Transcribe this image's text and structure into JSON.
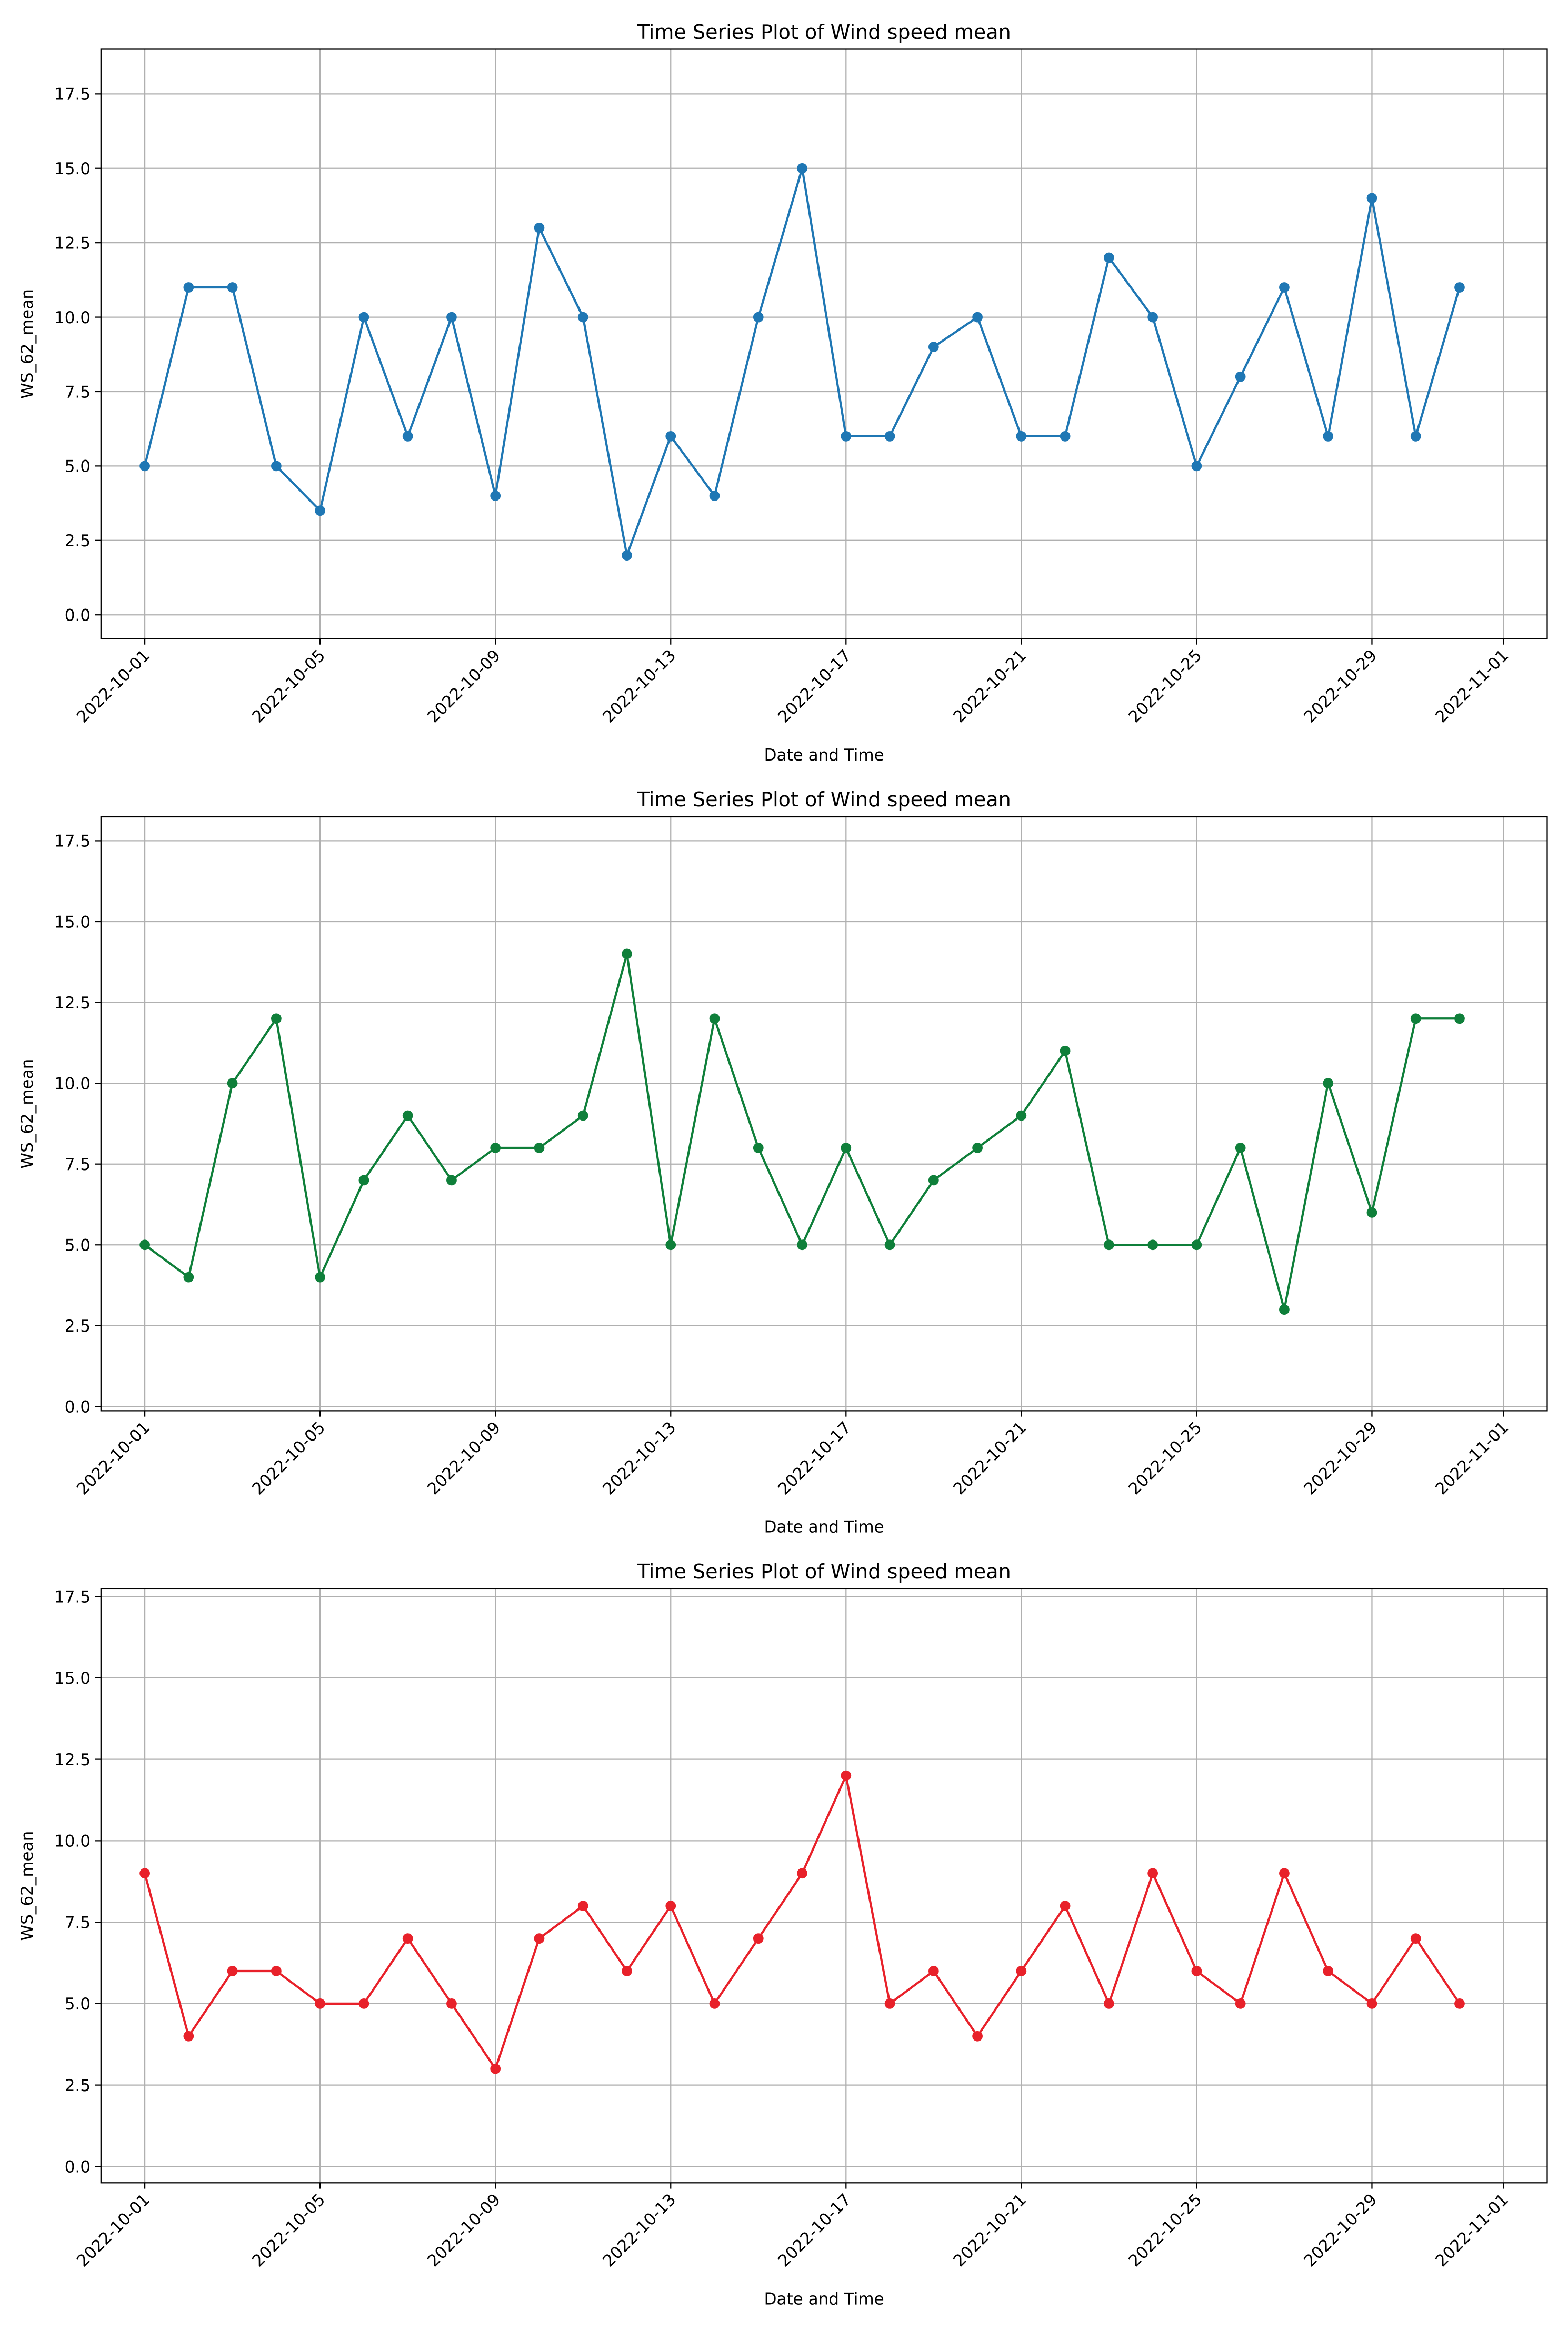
{
  "chart_data": [
    {
      "type": "line",
      "title": "Time Series Plot of Wind speed mean",
      "xlabel": "Date and Time",
      "ylabel": "WS_62_mean",
      "color": "#1f77b4",
      "grid": true,
      "x": [
        "2022-10-01",
        "2022-10-02",
        "2022-10-03",
        "2022-10-04",
        "2022-10-05",
        "2022-10-06",
        "2022-10-07",
        "2022-10-08",
        "2022-10-09",
        "2022-10-10",
        "2022-10-11",
        "2022-10-12",
        "2022-10-13",
        "2022-10-14",
        "2022-10-15",
        "2022-10-16",
        "2022-10-17",
        "2022-10-18",
        "2022-10-19",
        "2022-10-20",
        "2022-10-21",
        "2022-10-22",
        "2022-10-23",
        "2022-10-24",
        "2022-10-25",
        "2022-10-26",
        "2022-10-27",
        "2022-10-28",
        "2022-10-29",
        "2022-10-30",
        "2022-10-31"
      ],
      "values": [
        5,
        11,
        11,
        5,
        3.5,
        10,
        6,
        10,
        4,
        13,
        10,
        2,
        6,
        4,
        10,
        15,
        6,
        6,
        9,
        10,
        6,
        6,
        12,
        10,
        5,
        8,
        11,
        6,
        14,
        6,
        11
      ],
      "xlim": [
        "2022-09-30",
        "2022-11-02"
      ],
      "xticks": [
        "2022-10-01",
        "2022-10-05",
        "2022-10-09",
        "2022-10-13",
        "2022-10-17",
        "2022-10-21",
        "2022-10-25",
        "2022-10-29",
        "2022-11-01"
      ],
      "ylim": [
        -0.8,
        19.0
      ],
      "yticks": [
        {
          "value": 0,
          "label": "0.0"
        },
        2.5,
        {
          "value": 5,
          "label": "5.0"
        },
        7.5,
        {
          "value": 10,
          "label": "10.0"
        },
        12.5,
        {
          "value": 15,
          "label": "15.0"
        },
        17.5
      ]
    },
    {
      "type": "line",
      "title": "Time Series Plot of Wind speed mean",
      "xlabel": "Date and Time",
      "ylabel": "WS_62_mean",
      "color": "#0f7f3a",
      "grid": true,
      "x": [
        "2022-10-01",
        "2022-10-02",
        "2022-10-03",
        "2022-10-04",
        "2022-10-05",
        "2022-10-06",
        "2022-10-07",
        "2022-10-08",
        "2022-10-09",
        "2022-10-10",
        "2022-10-11",
        "2022-10-12",
        "2022-10-13",
        "2022-10-14",
        "2022-10-15",
        "2022-10-16",
        "2022-10-17",
        "2022-10-18",
        "2022-10-19",
        "2022-10-20",
        "2022-10-21",
        "2022-10-22",
        "2022-10-23",
        "2022-10-24",
        "2022-10-25",
        "2022-10-26",
        "2022-10-27",
        "2022-10-28",
        "2022-10-29",
        "2022-10-30",
        "2022-10-31"
      ],
      "values": [
        5,
        4,
        10,
        12,
        4,
        7,
        9,
        7,
        8,
        8,
        9,
        14,
        5,
        12,
        8,
        5,
        8,
        5,
        7,
        8,
        9,
        11,
        5,
        5,
        5,
        8,
        3,
        10,
        6,
        12,
        12
      ],
      "xlim": [
        "2022-09-30",
        "2022-11-02"
      ],
      "xticks": [
        "2022-10-01",
        "2022-10-05",
        "2022-10-09",
        "2022-10-13",
        "2022-10-17",
        "2022-10-21",
        "2022-10-25",
        "2022-10-29",
        "2022-11-01"
      ],
      "ylim": [
        -0.13,
        18.24
      ],
      "yticks": [
        {
          "value": 0,
          "label": "0.0"
        },
        2.5,
        {
          "value": 5,
          "label": "5.0"
        },
        7.5,
        {
          "value": 10,
          "label": "10.0"
        },
        12.5,
        {
          "value": 15,
          "label": "15.0"
        },
        17.5
      ]
    },
    {
      "type": "line",
      "title": "Time Series Plot of Wind speed mean",
      "xlabel": "Date and Time",
      "ylabel": "WS_62_mean",
      "color": "#e8212a",
      "grid": true,
      "x": [
        "2022-10-01",
        "2022-10-02",
        "2022-10-03",
        "2022-10-04",
        "2022-10-05",
        "2022-10-06",
        "2022-10-07",
        "2022-10-08",
        "2022-10-09",
        "2022-10-10",
        "2022-10-11",
        "2022-10-12",
        "2022-10-13",
        "2022-10-14",
        "2022-10-15",
        "2022-10-16",
        "2022-10-17",
        "2022-10-18",
        "2022-10-19",
        "2022-10-20",
        "2022-10-21",
        "2022-10-22",
        "2022-10-23",
        "2022-10-24",
        "2022-10-25",
        "2022-10-26",
        "2022-10-27",
        "2022-10-28",
        "2022-10-29",
        "2022-10-30",
        "2022-10-31"
      ],
      "values": [
        9,
        4,
        6,
        6,
        5,
        5,
        7,
        5,
        3,
        7,
        8,
        6,
        8,
        5,
        7,
        9,
        12,
        5,
        6,
        4,
        6,
        8,
        5,
        9,
        6,
        5,
        9,
        6,
        5,
        7,
        5
      ],
      "xlim": [
        "2022-09-30",
        "2022-11-02"
      ],
      "xticks": [
        "2022-10-01",
        "2022-10-05",
        "2022-10-09",
        "2022-10-13",
        "2022-10-17",
        "2022-10-21",
        "2022-10-25",
        "2022-10-29",
        "2022-11-01"
      ],
      "ylim": [
        -0.5,
        17.73
      ],
      "yticks": [
        {
          "value": 0,
          "label": "0.0"
        },
        2.5,
        {
          "value": 5,
          "label": "5.0"
        },
        7.5,
        {
          "value": 10,
          "label": "10.0"
        },
        12.5,
        {
          "value": 15,
          "label": "15.0"
        },
        17.5
      ]
    }
  ]
}
